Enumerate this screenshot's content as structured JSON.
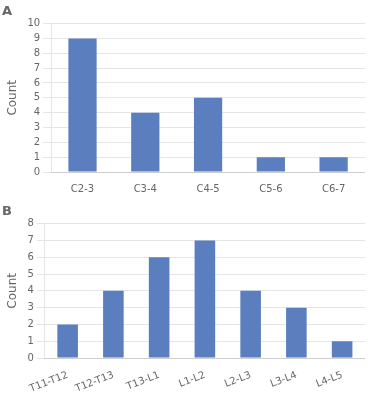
{
  "chart_data": [
    {
      "type": "bar",
      "title": "A",
      "categories": [
        "C2-3",
        "C3-4",
        "C4-5",
        "C5-6",
        "C6-7"
      ],
      "values": [
        9,
        4,
        5,
        1,
        1
      ],
      "color": "#5b7fbe",
      "ylabel": "Count",
      "ylim": [
        0,
        10
      ],
      "yticks": [
        0,
        1,
        2,
        3,
        4,
        5,
        6,
        7,
        8,
        9,
        10
      ],
      "grid": true
    },
    {
      "type": "bar",
      "title": "B",
      "categories": [
        "T11-T12",
        "T12-T13",
        "T13-L1",
        "L1-L2",
        "L2-L3",
        "L3-L4",
        "L4-L5"
      ],
      "values": [
        2,
        4,
        6,
        7,
        4,
        3,
        1
      ],
      "color": "#5b7fbe",
      "ylabel": "Count",
      "ylim": [
        0,
        8
      ],
      "yticks": [
        0,
        1,
        2,
        3,
        4,
        5,
        6,
        7,
        8
      ],
      "grid": true
    }
  ]
}
